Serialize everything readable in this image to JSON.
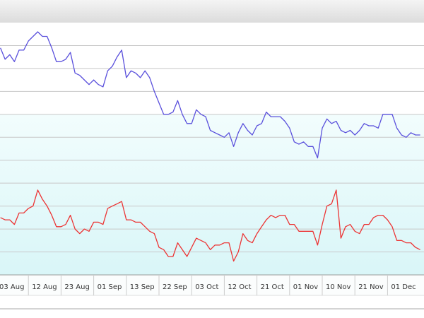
{
  "chart_data": {
    "type": "line",
    "categories": [
      "03 Aug",
      null,
      null,
      null,
      null,
      null,
      null,
      "12 Aug",
      null,
      null,
      null,
      null,
      null,
      null,
      "23 Aug",
      null,
      null,
      null,
      null,
      null,
      null,
      "01 Sep",
      null,
      null,
      null,
      null,
      null,
      null,
      "13 Sep",
      null,
      null,
      null,
      null,
      null,
      null,
      "22 Sep",
      null,
      null,
      null,
      null,
      null,
      null,
      "03 Oct",
      null,
      null,
      null,
      null,
      null,
      null,
      "12 Oct",
      null,
      null,
      null,
      null,
      null,
      null,
      "21 Oct",
      null,
      null,
      null,
      null,
      null,
      null,
      "01 Nov",
      null,
      null,
      null,
      null,
      null,
      null,
      "10 Nov",
      null,
      null,
      null,
      null,
      null,
      null,
      "21 Nov",
      null,
      null,
      null,
      null,
      null,
      null,
      "01 Dec",
      null,
      null,
      null,
      null,
      null,
      null,
      null
    ],
    "series": [
      {
        "color": "#5a50dc",
        "values": [
          null,
          9.9,
          9.4,
          9.6,
          9.3,
          9.8,
          9.8,
          10.2,
          10.4,
          10.6,
          10.4,
          10.4,
          9.9,
          9.3,
          9.3,
          9.4,
          9.7,
          8.8,
          8.7,
          8.5,
          8.3,
          8.5,
          8.3,
          8.2,
          8.9,
          9.1,
          9.5,
          9.8,
          8.6,
          8.9,
          8.8,
          8.6,
          8.9,
          8.6,
          8.0,
          7.5,
          7.0,
          7.0,
          7.1,
          7.6,
          7.0,
          6.6,
          6.6,
          7.2,
          7.0,
          6.9,
          6.3,
          6.2,
          6.1,
          6.0,
          6.2,
          5.6,
          6.2,
          6.6,
          6.3,
          6.1,
          6.5,
          6.6,
          7.1,
          6.9,
          6.9,
          6.9,
          6.7,
          6.4,
          5.8,
          5.7,
          5.8,
          5.6,
          5.6,
          5.1,
          6.4,
          6.8,
          6.6,
          6.7,
          6.3,
          6.2,
          6.3,
          6.1,
          6.3,
          6.6,
          6.5,
          6.5,
          6.4,
          7.0,
          7.0,
          7.0,
          6.4,
          6.1,
          6.0,
          6.2,
          6.1,
          6.1
        ]
      },
      {
        "color": "#ec3434",
        "values": [
          null,
          2.5,
          2.4,
          2.4,
          2.2,
          2.7,
          2.7,
          2.9,
          3.0,
          3.7,
          3.3,
          3.0,
          2.6,
          2.1,
          2.1,
          2.2,
          2.6,
          2.0,
          1.8,
          2.0,
          1.9,
          2.3,
          2.3,
          2.2,
          2.9,
          3.0,
          3.1,
          3.2,
          2.4,
          2.4,
          2.3,
          2.3,
          2.1,
          1.9,
          1.8,
          1.2,
          1.1,
          0.8,
          0.8,
          1.4,
          1.1,
          0.8,
          1.2,
          1.6,
          1.5,
          1.4,
          1.1,
          1.3,
          1.3,
          1.4,
          1.4,
          0.6,
          1.0,
          1.8,
          1.5,
          1.4,
          1.8,
          2.1,
          2.4,
          2.6,
          2.5,
          2.6,
          2.6,
          2.2,
          2.2,
          1.9,
          1.9,
          1.9,
          1.9,
          1.3,
          2.2,
          3.0,
          3.1,
          3.7,
          1.6,
          2.1,
          2.2,
          1.9,
          1.8,
          2.2,
          2.2,
          2.5,
          2.6,
          2.6,
          2.4,
          2.1,
          1.5,
          1.5,
          1.4,
          1.4,
          1.2,
          1.1
        ]
      }
    ],
    "ylim": [
      0,
      11
    ],
    "yticks": [
      1,
      2,
      3,
      4,
      5,
      6,
      7,
      8,
      9,
      10
    ],
    "grid": true
  }
}
